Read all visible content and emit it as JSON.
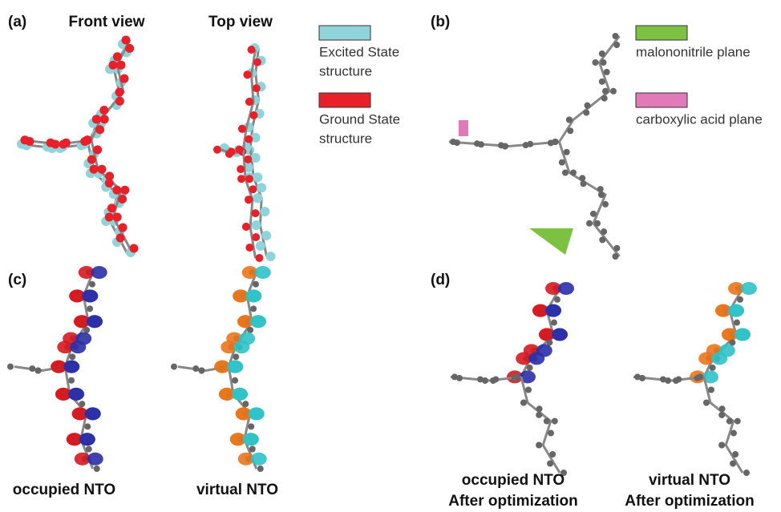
{
  "panels": [
    {
      "label": "(a)",
      "titles": [
        "Front view",
        "Top view"
      ],
      "legend": [
        {
          "text": [
            "Excited State",
            "structure"
          ],
          "color": "#8fd3db"
        },
        {
          "text": [
            "Ground State",
            "structure"
          ],
          "color": "#e8202a"
        }
      ]
    },
    {
      "label": "(b)",
      "legend": [
        {
          "text": [
            "malononitrile plane"
          ],
          "color": "#7dc142"
        },
        {
          "text": [
            "carboxylic acid plane"
          ],
          "color": "#e07ab8"
        }
      ]
    },
    {
      "label": "(c)",
      "captions": [
        [
          "occupied NTO"
        ],
        [
          "virtual NTO"
        ]
      ]
    },
    {
      "label": "(d)",
      "captions": [
        [
          "occupied NTO",
          "After optimization"
        ],
        [
          "virtual NTO",
          "After optimization"
        ]
      ]
    }
  ]
}
